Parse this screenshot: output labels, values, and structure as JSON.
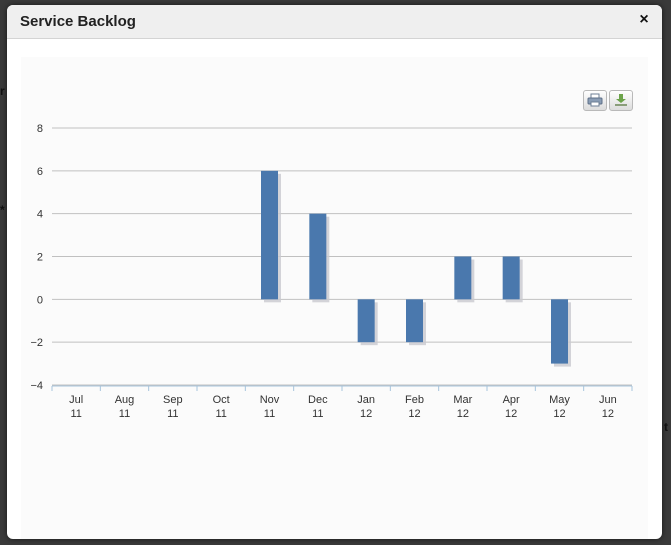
{
  "dialog": {
    "title": "Service Backlog",
    "close_icon": "×"
  },
  "toolbar": {
    "print_icon": "print-icon",
    "download_icon": "download-icon"
  },
  "colors": {
    "bar": "#4a78ad",
    "bar_shadow": "#c9c9d0",
    "grid": "#c0c0c0",
    "axis": "#a7c4dc"
  },
  "chart_data": {
    "type": "bar",
    "categories": [
      [
        "Jul",
        "11"
      ],
      [
        "Aug",
        "11"
      ],
      [
        "Sep",
        "11"
      ],
      [
        "Oct",
        "11"
      ],
      [
        "Nov",
        "11"
      ],
      [
        "Dec",
        "11"
      ],
      [
        "Jan",
        "12"
      ],
      [
        "Feb",
        "12"
      ],
      [
        "Mar",
        "12"
      ],
      [
        "Apr",
        "12"
      ],
      [
        "May",
        "12"
      ],
      [
        "Jun",
        "12"
      ]
    ],
    "values": [
      null,
      null,
      null,
      null,
      6,
      4,
      -2,
      -2,
      2,
      2,
      -3,
      null
    ],
    "ylim": [
      -4,
      8
    ],
    "yticks": [
      "8",
      "6",
      "4",
      "2",
      "0",
      "−2",
      "−4"
    ],
    "ytick_values": [
      8,
      6,
      4,
      2,
      0,
      -2,
      -4
    ],
    "grid": true,
    "legend": "none"
  }
}
